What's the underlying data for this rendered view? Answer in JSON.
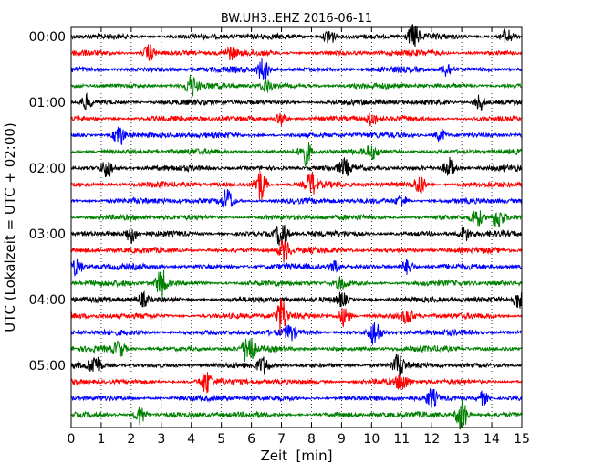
{
  "chart_data": {
    "type": "line",
    "title": "BW.UH3..EHZ 2016-06-11",
    "xlabel": "Zeit  [min]",
    "ylabel": "UTC (Lokalzeit = UTC + 02:00)",
    "xlim": [
      0,
      15
    ],
    "x_ticks": [
      0,
      1,
      2,
      3,
      4,
      5,
      6,
      7,
      8,
      9,
      10,
      11,
      12,
      13,
      14,
      15
    ],
    "y_tick_labels": [
      "00:00",
      "01:00",
      "02:00",
      "03:00",
      "04:00",
      "05:00"
    ],
    "grid": "vertical dotted",
    "trace_interval_min": 15,
    "colors": [
      "#000000",
      "#ff0000",
      "#0000ff",
      "#008000"
    ],
    "traces": [
      {
        "start": "00:00",
        "color": "#000000",
        "events": [
          [
            8.6,
            1.6
          ],
          [
            11.4,
            2.2
          ],
          [
            14.5,
            1.3
          ]
        ]
      },
      {
        "start": "00:15",
        "color": "#ff0000",
        "events": [
          [
            2.6,
            1.5
          ],
          [
            5.3,
            1.0
          ]
        ]
      },
      {
        "start": "00:30",
        "color": "#0000ff",
        "events": [
          [
            6.4,
            2.2
          ],
          [
            12.5,
            1.3
          ]
        ]
      },
      {
        "start": "00:45",
        "color": "#008000",
        "events": [
          [
            4.0,
            1.8
          ],
          [
            6.5,
            1.2
          ]
        ]
      },
      {
        "start": "01:00",
        "color": "#000000",
        "events": [
          [
            0.5,
            1.2
          ],
          [
            13.6,
            1.5
          ]
        ]
      },
      {
        "start": "01:15",
        "color": "#ff0000",
        "events": [
          [
            7.0,
            1.2
          ],
          [
            10.0,
            1.1
          ]
        ]
      },
      {
        "start": "01:30",
        "color": "#0000ff",
        "events": [
          [
            1.6,
            2.1
          ],
          [
            12.3,
            1.2
          ]
        ]
      },
      {
        "start": "01:45",
        "color": "#008000",
        "events": [
          [
            7.8,
            2.3
          ],
          [
            10.0,
            1.0
          ]
        ]
      },
      {
        "start": "02:00",
        "color": "#000000",
        "events": [
          [
            1.2,
            1.7
          ],
          [
            9.1,
            1.3
          ],
          [
            12.6,
            1.8
          ]
        ]
      },
      {
        "start": "02:15",
        "color": "#ff0000",
        "events": [
          [
            6.3,
            3.0
          ],
          [
            8.0,
            2.0
          ],
          [
            11.6,
            1.8
          ]
        ]
      },
      {
        "start": "02:30",
        "color": "#0000ff",
        "events": [
          [
            5.2,
            2.2
          ],
          [
            11.0,
            1.0
          ]
        ]
      },
      {
        "start": "02:45",
        "color": "#008000",
        "events": [
          [
            13.5,
            1.6
          ],
          [
            14.2,
            1.8
          ]
        ]
      },
      {
        "start": "03:00",
        "color": "#000000",
        "events": [
          [
            2.0,
            1.5
          ],
          [
            7.0,
            2.6
          ],
          [
            13.1,
            1.2
          ]
        ]
      },
      {
        "start": "03:15",
        "color": "#ff0000",
        "events": [
          [
            7.1,
            2.0
          ]
        ]
      },
      {
        "start": "03:30",
        "color": "#0000ff",
        "events": [
          [
            0.2,
            1.6
          ],
          [
            8.8,
            1.0
          ],
          [
            11.2,
            1.4
          ]
        ]
      },
      {
        "start": "03:45",
        "color": "#008000",
        "events": [
          [
            3.0,
            2.6
          ],
          [
            9.0,
            1.0
          ]
        ]
      },
      {
        "start": "04:00",
        "color": "#000000",
        "events": [
          [
            2.4,
            1.1
          ],
          [
            9.0,
            1.2
          ],
          [
            14.9,
            1.5
          ]
        ]
      },
      {
        "start": "04:15",
        "color": "#ff0000",
        "events": [
          [
            7.0,
            3.4
          ],
          [
            9.1,
            1.8
          ],
          [
            11.2,
            1.3
          ]
        ]
      },
      {
        "start": "04:30",
        "color": "#0000ff",
        "events": [
          [
            10.1,
            2.3
          ],
          [
            7.3,
            1.2
          ]
        ]
      },
      {
        "start": "04:45",
        "color": "#008000",
        "events": [
          [
            1.6,
            1.5
          ],
          [
            5.9,
            3.0
          ]
        ]
      },
      {
        "start": "05:00",
        "color": "#000000",
        "events": [
          [
            0.8,
            1.8
          ],
          [
            6.4,
            1.4
          ],
          [
            10.9,
            1.9
          ]
        ]
      },
      {
        "start": "05:15",
        "color": "#ff0000",
        "events": [
          [
            4.5,
            2.0
          ],
          [
            11.0,
            1.6
          ]
        ]
      },
      {
        "start": "05:30",
        "color": "#0000ff",
        "events": [
          [
            12.0,
            1.5
          ],
          [
            13.7,
            1.3
          ]
        ]
      },
      {
        "start": "05:45",
        "color": "#008000",
        "events": [
          [
            2.3,
            1.8
          ],
          [
            13.0,
            3.2
          ]
        ]
      }
    ]
  }
}
